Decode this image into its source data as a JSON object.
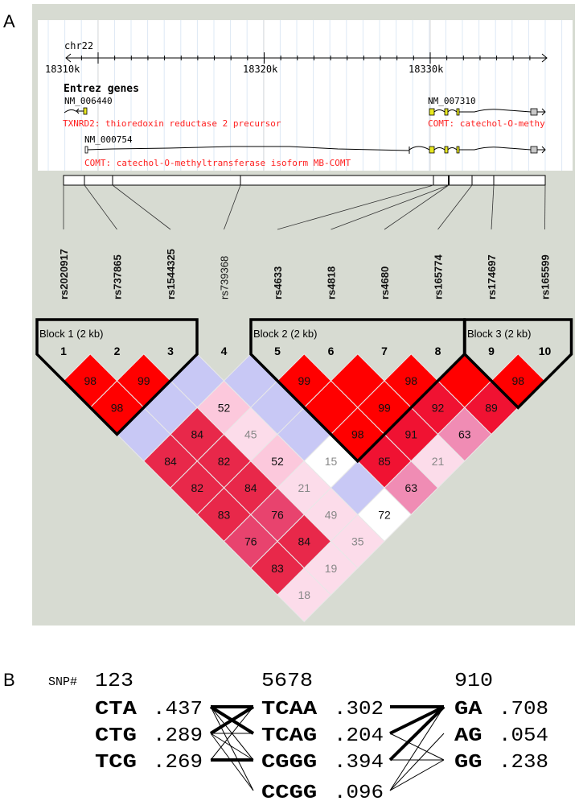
{
  "panel_labels": {
    "a": "A",
    "b": "B"
  },
  "genome": {
    "chrom": "chr22",
    "tick_labels": [
      "18310k",
      "18320k",
      "18330k"
    ],
    "track_title": "Entrez genes",
    "genes": [
      {
        "id": "NM_006440",
        "desc": "TXNRD2: thioredoxin reductase 2 precursor"
      },
      {
        "id": "NM_007310",
        "desc": "COMT: catechol-O-methy"
      },
      {
        "id": "NM_000754",
        "desc": "COMT: catechol-O-methyltransferase isoform MB-COMT"
      }
    ],
    "colors": {
      "desc": "#ff2020",
      "exon": "#e8e820",
      "utr": "#c8c8c8",
      "grid": "#dde8f4"
    }
  },
  "snps": [
    "rs2020917",
    "rs737865",
    "rs1544325",
    "rs739368",
    "rs4633",
    "rs4818",
    "rs4680",
    "rs165774",
    "rs174697",
    "rs165599"
  ],
  "snp_numbers": [
    "1",
    "2",
    "3",
    "4",
    "5",
    "6",
    "7",
    "8",
    "9",
    "10"
  ],
  "blocks": [
    {
      "label": "Block 1 (2 kb)",
      "first": 1,
      "last": 3
    },
    {
      "label": "Block 2 (2 kb)",
      "first": 5,
      "last": 8
    },
    {
      "label": "Block 3 (2 kb)",
      "first": 9,
      "last": 10
    }
  ],
  "ld_colors": {
    "strong": "#ff0000",
    "high": "#f01232",
    "mid": "#e8284a",
    "mid2": "#e8436e",
    "pink": "#f08cb4",
    "light": "#fcc8dc",
    "pale": "#fcdcea",
    "blue": "#c8c8f5",
    "white": "#ffffff"
  },
  "ld": [
    {
      "i": 1,
      "j": 2,
      "v": "98",
      "c": "strong"
    },
    {
      "i": 2,
      "j": 3,
      "v": "99",
      "c": "strong"
    },
    {
      "i": 3,
      "j": 4,
      "v": "",
      "c": "blue"
    },
    {
      "i": 4,
      "j": 5,
      "v": "",
      "c": "blue"
    },
    {
      "i": 5,
      "j": 6,
      "v": "99",
      "c": "strong"
    },
    {
      "i": 6,
      "j": 7,
      "v": "",
      "c": "strong"
    },
    {
      "i": 7,
      "j": 8,
      "v": "98",
      "c": "strong"
    },
    {
      "i": 8,
      "j": 9,
      "v": "",
      "c": "strong"
    },
    {
      "i": 9,
      "j": 10,
      "v": "98",
      "c": "strong"
    },
    {
      "i": 1,
      "j": 3,
      "v": "98",
      "c": "strong"
    },
    {
      "i": 2,
      "j": 4,
      "v": "",
      "c": "blue"
    },
    {
      "i": 3,
      "j": 5,
      "v": "52",
      "c": "light"
    },
    {
      "i": 4,
      "j": 6,
      "v": "",
      "c": "blue"
    },
    {
      "i": 5,
      "j": 7,
      "v": "",
      "c": "strong"
    },
    {
      "i": 6,
      "j": 8,
      "v": "99",
      "c": "strong"
    },
    {
      "i": 7,
      "j": 9,
      "v": "92",
      "c": "high"
    },
    {
      "i": 8,
      "j": 10,
      "v": "89",
      "c": "high"
    },
    {
      "i": 1,
      "j": 4,
      "v": "",
      "c": "blue"
    },
    {
      "i": 2,
      "j": 5,
      "v": "84",
      "c": "mid"
    },
    {
      "i": 3,
      "j": 6,
      "v": "45",
      "c": "pale"
    },
    {
      "i": 4,
      "j": 7,
      "v": "",
      "c": "blue"
    },
    {
      "i": 5,
      "j": 8,
      "v": "98",
      "c": "strong"
    },
    {
      "i": 6,
      "j": 9,
      "v": "91",
      "c": "high"
    },
    {
      "i": 7,
      "j": 10,
      "v": "63",
      "c": "pink"
    },
    {
      "i": 1,
      "j": 5,
      "v": "84",
      "c": "mid"
    },
    {
      "i": 2,
      "j": 6,
      "v": "82",
      "c": "mid"
    },
    {
      "i": 3,
      "j": 7,
      "v": "52",
      "c": "light"
    },
    {
      "i": 4,
      "j": 8,
      "v": "15",
      "c": "white"
    },
    {
      "i": 5,
      "j": 9,
      "v": "85",
      "c": "high"
    },
    {
      "i": 6,
      "j": 10,
      "v": "21",
      "c": "pale"
    },
    {
      "i": 1,
      "j": 6,
      "v": "82",
      "c": "mid"
    },
    {
      "i": 2,
      "j": 7,
      "v": "84",
      "c": "mid"
    },
    {
      "i": 3,
      "j": 8,
      "v": "21",
      "c": "pale"
    },
    {
      "i": 4,
      "j": 9,
      "v": "",
      "c": "blue"
    },
    {
      "i": 5,
      "j": 10,
      "v": "63",
      "c": "pink"
    },
    {
      "i": 1,
      "j": 7,
      "v": "83",
      "c": "mid"
    },
    {
      "i": 2,
      "j": 8,
      "v": "76",
      "c": "mid2"
    },
    {
      "i": 3,
      "j": 9,
      "v": "49",
      "c": "pale"
    },
    {
      "i": 4,
      "j": 10,
      "v": "72",
      "c": "white"
    },
    {
      "i": 1,
      "j": 8,
      "v": "76",
      "c": "mid2"
    },
    {
      "i": 2,
      "j": 9,
      "v": "84",
      "c": "mid"
    },
    {
      "i": 3,
      "j": 10,
      "v": "35",
      "c": "pale"
    },
    {
      "i": 1,
      "j": 9,
      "v": "83",
      "c": "mid"
    },
    {
      "i": 2,
      "j": 10,
      "v": "19",
      "c": "pale"
    },
    {
      "i": 1,
      "j": 10,
      "v": "18",
      "c": "pale"
    }
  ],
  "haplotypes": {
    "snp_label": "SNP#",
    "blocks": [
      {
        "header": "123",
        "haps": [
          {
            "h": "CTA",
            "f": ".437"
          },
          {
            "h": "CTG",
            "f": ".289"
          },
          {
            "h": "TCG",
            "f": ".269"
          }
        ]
      },
      {
        "header": "5678",
        "haps": [
          {
            "h": "TCAA",
            "f": ".302"
          },
          {
            "h": "TCAG",
            "f": ".204"
          },
          {
            "h": "CGGG",
            "f": ".394"
          },
          {
            "h": "CCGG",
            "f": ".096"
          }
        ]
      },
      {
        "header": "910",
        "haps": [
          {
            "h": "GA",
            "f": ".708"
          },
          {
            "h": "AG",
            "f": ".054"
          },
          {
            "h": "GG",
            "f": ".238"
          }
        ]
      }
    ],
    "links_1_2": [
      [
        0,
        0,
        "thick"
      ],
      [
        0,
        1,
        "thick"
      ],
      [
        1,
        0,
        "thick"
      ],
      [
        2,
        2,
        "thick"
      ],
      [
        0,
        2,
        "thin"
      ],
      [
        0,
        3,
        "thin"
      ],
      [
        1,
        1,
        "thin"
      ],
      [
        1,
        2,
        "thin"
      ],
      [
        1,
        3,
        "thin"
      ],
      [
        2,
        0,
        "thin"
      ]
    ],
    "links_2_3": [
      [
        0,
        0,
        "thick"
      ],
      [
        1,
        0,
        "thick"
      ],
      [
        2,
        0,
        "thick"
      ],
      [
        1,
        2,
        "thin"
      ],
      [
        2,
        2,
        "thin"
      ],
      [
        3,
        0,
        "thin"
      ],
      [
        3,
        1,
        "thin"
      ],
      [
        3,
        2,
        "thin"
      ]
    ]
  }
}
